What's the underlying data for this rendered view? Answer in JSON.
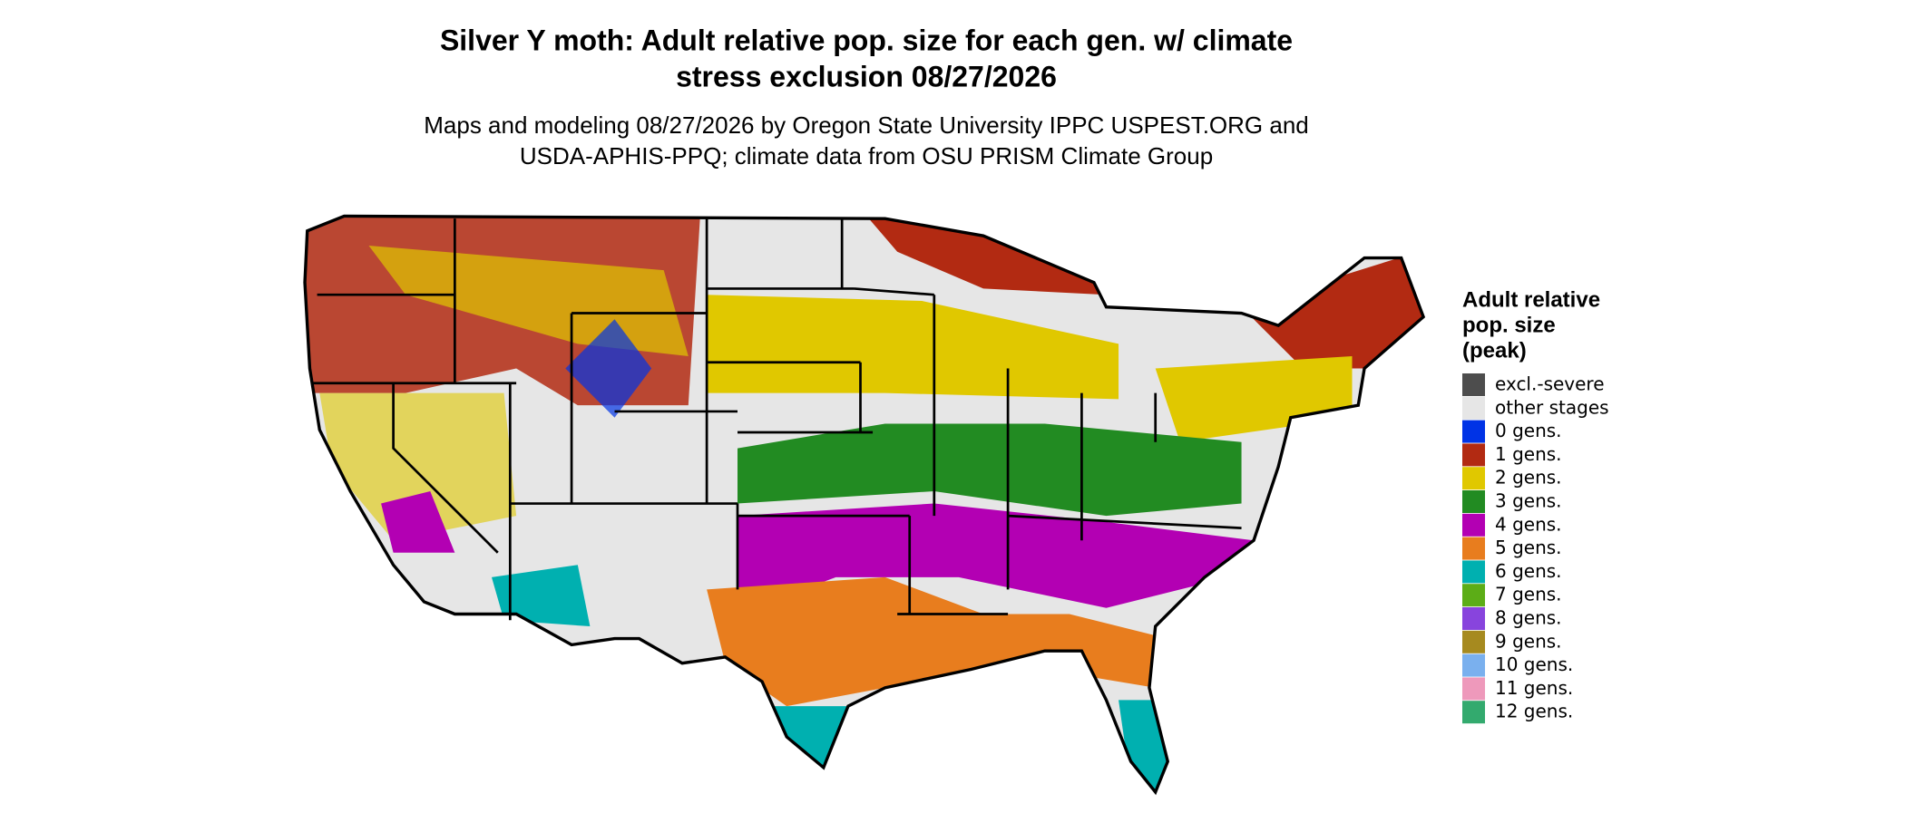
{
  "header": {
    "title_lines": [
      "Silver Y moth: Adult relative pop. size for each gen. w/ climate",
      "stress exclusion 08/27/2026"
    ],
    "subtitle_lines": [
      "Maps and modeling 08/27/2026 by Oregon State University IPPC USPEST.ORG and",
      "USDA-APHIS-PPQ; climate data from OSU PRISM Climate Group"
    ]
  },
  "legend": {
    "title_lines": [
      "Adult relative",
      "pop. size",
      "(peak)"
    ],
    "items": [
      {
        "label": "excl.-severe",
        "color": "#4d4d4d"
      },
      {
        "label": "other stages",
        "color": "#e6e6e6"
      },
      {
        "label": "0 gens.",
        "color": "#0033e6"
      },
      {
        "label": "1 gens.",
        "color": "#b22a12"
      },
      {
        "label": "2 gens.",
        "color": "#e0c800"
      },
      {
        "label": "3 gens.",
        "color": "#228b22"
      },
      {
        "label": "4 gens.",
        "color": "#b300b3"
      },
      {
        "label": "5 gens.",
        "color": "#e87d1e"
      },
      {
        "label": "6 gens.",
        "color": "#00b0b0"
      },
      {
        "label": "7 gens.",
        "color": "#5cad17"
      },
      {
        "label": "8 gens.",
        "color": "#8844dd"
      },
      {
        "label": "9 gens.",
        "color": "#a68a1f"
      },
      {
        "label": "10 gens.",
        "color": "#7ab0ee"
      },
      {
        "label": "11 gens.",
        "color": "#ee99bb"
      },
      {
        "label": "12 gens.",
        "color": "#33aa6e"
      }
    ]
  }
}
